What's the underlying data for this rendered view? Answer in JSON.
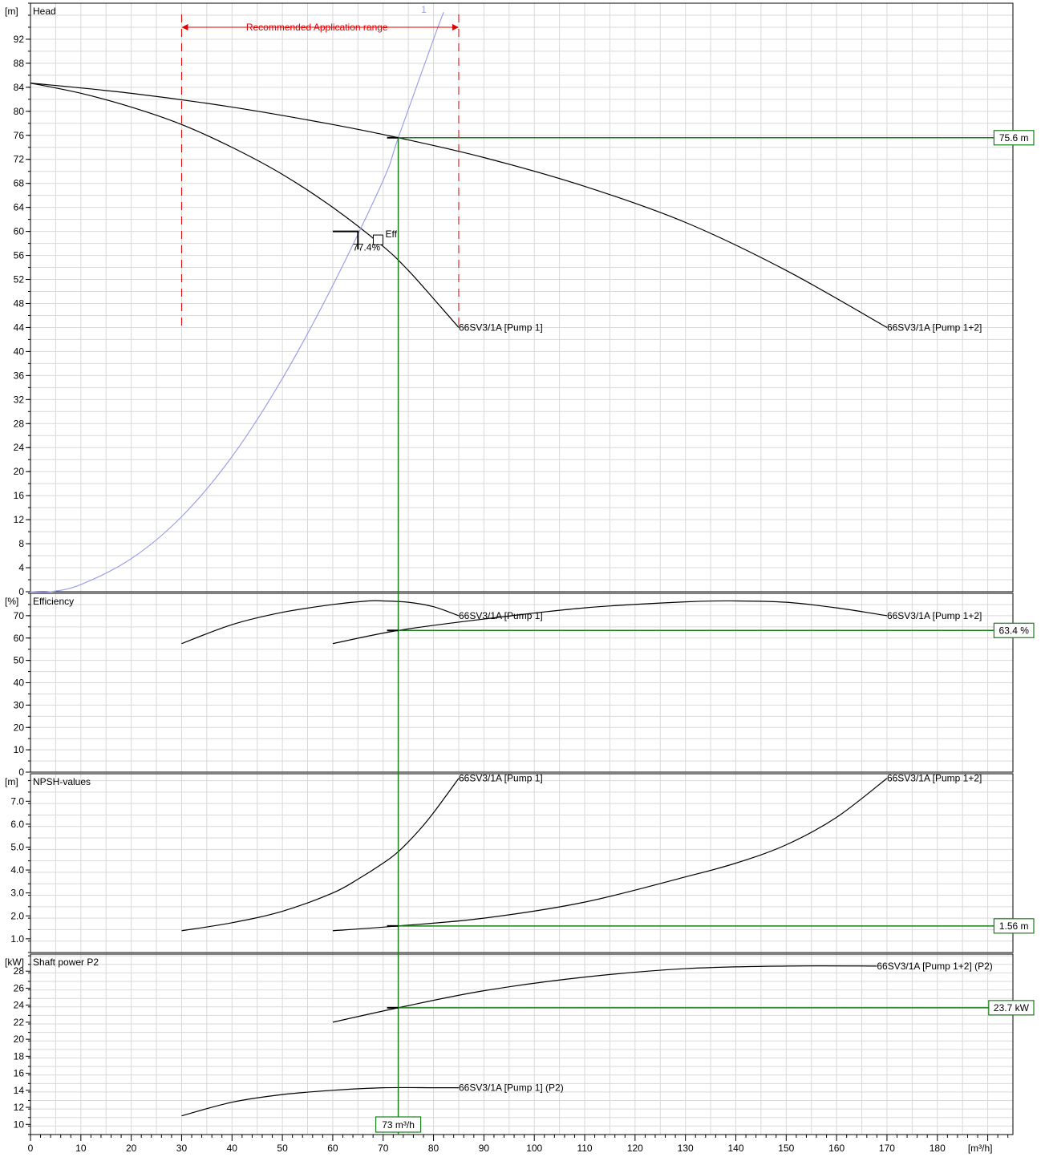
{
  "chart_data": {
    "type": "line",
    "x_axis": {
      "label": "[m³/h]",
      "range": [
        0,
        195
      ],
      "ticks": [
        0,
        10,
        20,
        30,
        40,
        50,
        60,
        70,
        80,
        90,
        100,
        110,
        120,
        130,
        140,
        150,
        160,
        170,
        180
      ]
    },
    "operating_point": {
      "x": 73,
      "label": "73 m³/h"
    },
    "panels": [
      {
        "id": "head",
        "title": "Head",
        "unit": "[m]",
        "ylim": [
          0,
          98
        ],
        "yticks": [
          0,
          4,
          8,
          12,
          16,
          20,
          24,
          28,
          32,
          36,
          40,
          44,
          48,
          52,
          56,
          60,
          64,
          68,
          72,
          76,
          80,
          84,
          88,
          92
        ],
        "series": [
          {
            "name": "66SV3/1A [Pump 1]",
            "label_pos": "end",
            "x": [
              0,
              10,
              20,
              30,
              40,
              50,
              60,
              70,
              75,
              80,
              85
            ],
            "y": [
              84.7,
              83.0,
              80.7,
              77.8,
              74.0,
              69.5,
              64.0,
              57.5,
              53.5,
              48.8,
              44.0
            ]
          },
          {
            "name": "66SV3/1A [Pump 1+2]",
            "label_pos": "end",
            "x": [
              0,
              20,
              40,
              60,
              73,
              90,
              110,
              130,
              150,
              170
            ],
            "y": [
              84.7,
              83.0,
              80.7,
              77.8,
              75.6,
              72.3,
              67.5,
              61.5,
              53.5,
              44.0
            ]
          },
          {
            "name": "1",
            "label_pos": "end",
            "color": "#9da0e6",
            "x": [
              0,
              4,
              10,
              20,
              30,
              40,
              50,
              60,
              70,
              73,
              80,
              82
            ],
            "y": [
              0,
              0,
              1.2,
              5.5,
              12.5,
              22.5,
              35.5,
              51.0,
              68.5,
              75.6,
              92.0,
              96.5
            ]
          }
        ],
        "markers": [
          {
            "type": "eff",
            "label": "Eff.",
            "value_label": "77.4%",
            "x": 69,
            "y": 58.6
          }
        ],
        "application_range": {
          "label": "Recommended Application range",
          "from": 30,
          "to": 85,
          "y": 94
        },
        "readout": {
          "y": 75.6,
          "label": "75.6 m"
        }
      },
      {
        "id": "efficiency",
        "title": "Efficiency",
        "unit": "[%]",
        "ylim": [
          0,
          80
        ],
        "yticks": [
          0,
          10,
          20,
          30,
          40,
          50,
          60,
          70
        ],
        "series": [
          {
            "name": "66SV3/1A [Pump 1]",
            "label_pos": "end",
            "x": [
              30,
              40,
              50,
              60,
              67,
              70,
              75,
              80,
              85
            ],
            "y": [
              57.5,
              66.0,
              71.5,
              75.0,
              76.6,
              76.6,
              76.0,
              74.0,
              70.0
            ]
          },
          {
            "name": "66SV3/1A [Pump 1+2]",
            "label_pos": "end",
            "x": [
              60,
              73,
              90,
              110,
              130,
              140,
              150,
              160,
              170
            ],
            "y": [
              57.5,
              63.4,
              68.5,
              73.5,
              76.2,
              76.6,
              76.0,
              73.5,
              70.0
            ]
          }
        ],
        "readout": {
          "y": 63.4,
          "label": "63.4 %"
        }
      },
      {
        "id": "npsh",
        "title": "NPSH-values",
        "unit": "[m]",
        "ylim": [
          0.4,
          8.2
        ],
        "yticks": [
          1.0,
          2.0,
          3.0,
          4.0,
          5.0,
          6.0,
          7.0
        ],
        "ytick_labels": [
          "1.0",
          "2.0",
          "3.0",
          "4.0",
          "5.0",
          "6.0",
          "7.0"
        ],
        "series": [
          {
            "name": "66SV3/1A [Pump 1]",
            "label_pos": "end",
            "x": [
              30,
              40,
              50,
              60,
              65,
              70,
              73,
              77,
              80,
              85
            ],
            "y": [
              1.35,
              1.7,
              2.2,
              3.0,
              3.6,
              4.3,
              4.8,
              5.7,
              6.5,
              8.0
            ]
          },
          {
            "name": "66SV3/1A [Pump 1+2]",
            "label_pos": "end",
            "x": [
              60,
              73,
              90,
              110,
              130,
              140,
              150,
              160,
              170
            ],
            "y": [
              1.35,
              1.56,
              1.9,
              2.6,
              3.7,
              4.3,
              5.1,
              6.3,
              8.0
            ]
          }
        ],
        "readout": {
          "y": 1.56,
          "label": "1.56 m"
        }
      },
      {
        "id": "power",
        "title": "Shaft power P2",
        "unit": "[kW]",
        "ylim": [
          8.8,
          30.0
        ],
        "yticks": [
          10,
          12,
          14,
          16,
          18,
          20,
          22,
          24,
          26,
          28
        ],
        "series": [
          {
            "name": "66SV3/1A [Pump 1] (P2)",
            "label_pos": "end",
            "x": [
              30,
              40,
              50,
              60,
              70,
              80,
              85
            ],
            "y": [
              11.0,
              12.6,
              13.5,
              14.0,
              14.3,
              14.3,
              14.3
            ]
          },
          {
            "name": "66SV3/1A [Pump 1+2] (P2)",
            "label_pos": "end",
            "x": [
              60,
              73,
              90,
              110,
              130,
              150,
              168
            ],
            "y": [
              22.0,
              23.7,
              25.7,
              27.3,
              28.3,
              28.6,
              28.6
            ]
          }
        ],
        "readout": {
          "y": 23.7,
          "label": "23.7 kW"
        }
      }
    ]
  }
}
